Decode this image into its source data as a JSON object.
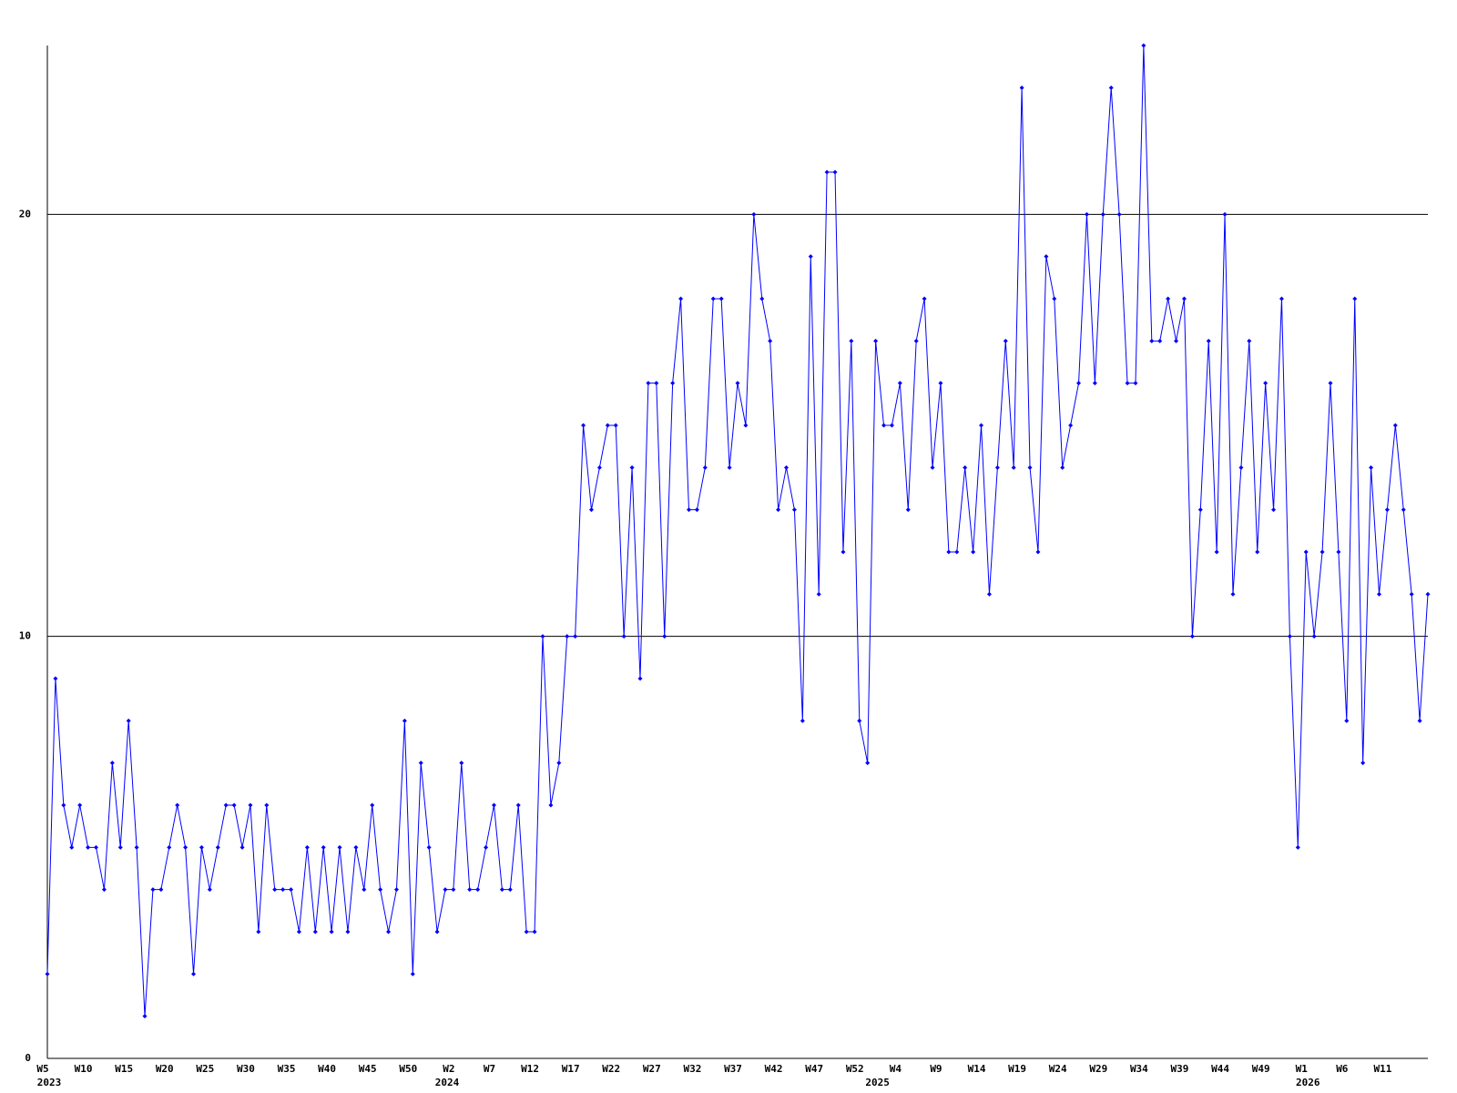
{
  "chart_data": {
    "type": "line",
    "color": "#0000ff",
    "grid": true,
    "ylim": [
      0,
      24
    ],
    "yticks": [
      0,
      10,
      20
    ],
    "values": [
      2,
      9,
      6,
      5,
      6,
      5,
      5,
      4,
      7,
      5,
      8,
      5,
      1,
      4,
      4,
      5,
      6,
      5,
      2,
      5,
      4,
      5,
      6,
      6,
      5,
      6,
      3,
      6,
      4,
      4,
      4,
      3,
      5,
      3,
      5,
      3,
      5,
      3,
      5,
      4,
      6,
      4,
      3,
      4,
      8,
      2,
      7,
      5,
      3,
      4,
      4,
      7,
      4,
      4,
      5,
      6,
      4,
      4,
      6,
      3,
      3,
      10,
      6,
      7,
      10,
      10,
      15,
      13,
      14,
      15,
      15,
      10,
      14,
      9,
      16,
      16,
      10,
      16,
      18,
      13,
      13,
      14,
      18,
      18,
      14,
      16,
      15,
      20,
      18,
      17,
      13,
      14,
      13,
      8,
      19,
      11,
      21,
      21,
      12,
      17,
      8,
      7,
      17,
      15,
      15,
      16,
      13,
      17,
      18,
      14,
      16,
      12,
      12,
      14,
      12,
      15,
      11,
      14,
      17,
      14,
      23,
      14,
      12,
      19,
      18,
      14,
      15,
      16,
      20,
      16,
      20,
      23,
      20,
      16,
      16,
      24,
      17,
      17,
      18,
      17,
      18,
      10,
      13,
      17,
      12,
      20,
      11,
      14,
      17,
      12,
      16,
      13,
      18,
      10,
      5,
      12,
      10,
      12,
      16,
      12,
      8,
      18,
      7,
      14,
      11,
      13,
      15,
      13,
      11,
      8,
      11
    ],
    "categories": [
      "W5",
      null,
      null,
      null,
      null,
      "W10",
      null,
      null,
      null,
      null,
      "W15",
      null,
      null,
      null,
      null,
      "W20",
      null,
      null,
      null,
      null,
      "W25",
      null,
      null,
      null,
      null,
      "W30",
      null,
      null,
      null,
      null,
      "W35",
      null,
      null,
      null,
      null,
      "W40",
      null,
      null,
      null,
      null,
      "W45",
      null,
      null,
      null,
      null,
      "W50",
      null,
      null,
      null,
      null,
      "W2",
      null,
      null,
      null,
      null,
      "W7",
      null,
      null,
      null,
      null,
      "W12",
      null,
      null,
      null,
      null,
      "W17",
      null,
      null,
      null,
      null,
      "W22",
      null,
      null,
      null,
      null,
      "W27",
      null,
      null,
      null,
      null,
      "W32",
      null,
      null,
      null,
      null,
      "W37",
      null,
      null,
      null,
      null,
      "W42",
      null,
      null,
      null,
      null,
      "W47",
      null,
      null,
      null,
      null,
      "W52",
      null,
      null,
      null,
      null,
      "W4",
      null,
      null,
      null,
      null,
      "W9",
      null,
      null,
      null,
      null,
      "W14",
      null,
      null,
      null,
      null,
      "W19",
      null,
      null,
      null,
      null,
      "W24",
      null,
      null,
      null,
      null,
      "W29",
      null,
      null,
      null,
      null,
      "W34",
      null,
      null,
      null,
      null,
      "W39",
      null,
      null,
      null,
      null,
      "W44",
      null,
      null,
      null,
      null,
      "W49",
      null,
      null,
      null,
      null,
      "W1",
      null,
      null,
      null,
      null,
      "W6",
      null,
      null,
      null,
      null,
      "W11",
      null,
      null,
      null,
      null,
      null
    ],
    "year_labels": [
      "2023",
      null,
      null,
      null,
      null,
      null,
      null,
      null,
      null,
      null,
      null,
      null,
      null,
      null,
      null,
      null,
      null,
      null,
      null,
      null,
      null,
      null,
      null,
      null,
      null,
      null,
      null,
      null,
      null,
      null,
      null,
      null,
      null,
      null,
      null,
      null,
      null,
      null,
      null,
      null,
      null,
      null,
      null,
      null,
      null,
      null,
      null,
      null,
      null,
      "2024",
      null,
      null,
      null,
      null,
      null,
      null,
      null,
      null,
      null,
      null,
      null,
      null,
      null,
      null,
      null,
      null,
      null,
      null,
      null,
      null,
      null,
      null,
      null,
      null,
      null,
      null,
      null,
      null,
      null,
      null,
      null,
      null,
      null,
      null,
      null,
      null,
      null,
      null,
      null,
      null,
      null,
      null,
      null,
      null,
      null,
      null,
      null,
      null,
      null,
      null,
      null,
      null,
      "2025",
      null,
      null,
      null,
      null,
      null,
      null,
      null,
      null,
      null,
      null,
      null,
      null,
      null,
      null,
      null,
      null,
      null,
      null,
      null,
      null,
      null,
      null,
      null,
      null,
      null,
      null,
      null,
      null,
      null,
      null,
      null,
      null,
      null,
      null,
      null,
      null,
      null,
      null,
      null,
      null,
      null,
      null,
      null,
      null,
      null,
      null,
      null,
      null,
      null,
      null,
      null,
      null,
      "2026",
      null,
      null,
      null,
      null,
      null,
      null,
      null,
      null,
      null,
      null,
      null,
      null,
      null,
      null,
      null
    ]
  }
}
